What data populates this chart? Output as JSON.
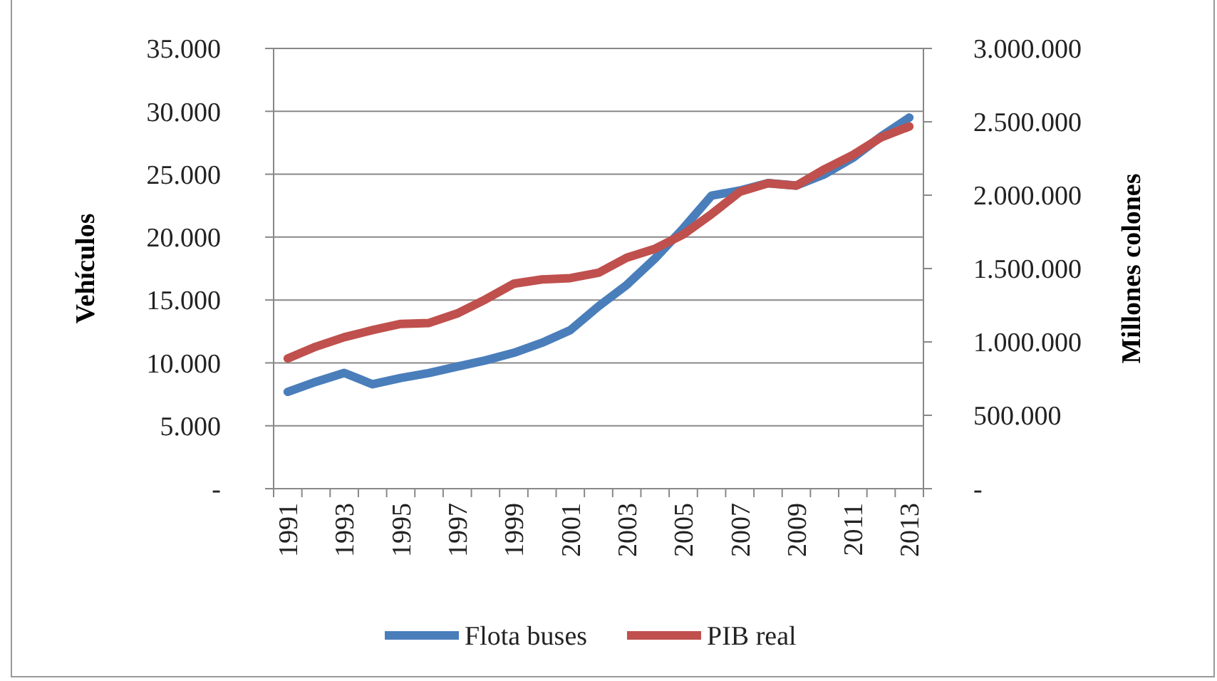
{
  "chart_data": {
    "type": "line",
    "ylabel": "Vehículos",
    "y2label": "Millones colones",
    "categories": [
      "1991",
      null,
      "1993",
      null,
      "1995",
      null,
      "1997",
      null,
      "1999",
      null,
      "2001",
      null,
      "2003",
      null,
      "2005",
      null,
      "2007",
      null,
      "2009",
      null,
      "2011",
      null,
      "2013"
    ],
    "series": [
      {
        "name": "Flota buses",
        "color": "#4a7ebb",
        "values": [
          7700,
          8500,
          9200,
          8300,
          8800,
          9200,
          9700,
          10200,
          10800,
          11600,
          12600,
          14500,
          16200,
          18300,
          20700,
          23300,
          23700,
          24300,
          24100,
          25000,
          26300,
          28000,
          29500
        ]
      },
      {
        "name": "PIB real",
        "color": "#c0504d",
        "axis": "y2",
        "values": [
          887000,
          968000,
          1032000,
          1081000,
          1123000,
          1129000,
          1194000,
          1290000,
          1397000,
          1426000,
          1435000,
          1471000,
          1574000,
          1635000,
          1732000,
          1871000,
          2023000,
          2081000,
          2065000,
          2177000,
          2274000,
          2394000,
          2468000
        ]
      }
    ],
    "ylim": [
      0,
      35000
    ],
    "yticks": [
      {
        "value": 0,
        "label": "-"
      },
      {
        "value": 5000,
        "label": "5.000"
      },
      {
        "value": 10000,
        "label": "10.000"
      },
      {
        "value": 15000,
        "label": "15.000"
      },
      {
        "value": 20000,
        "label": "20.000"
      },
      {
        "value": 25000,
        "label": "25.000"
      },
      {
        "value": 30000,
        "label": "30.000"
      },
      {
        "value": 35000,
        "label": "35.000"
      }
    ],
    "y2lim": [
      0,
      3000000
    ],
    "y2ticks": [
      {
        "value": 0,
        "label": "-"
      },
      {
        "value": 500000,
        "label": "500.000"
      },
      {
        "value": 1000000,
        "label": "1.000.000"
      },
      {
        "value": 1500000,
        "label": "1.500.000"
      },
      {
        "value": 2000000,
        "label": "2.000.000"
      },
      {
        "value": 2500000,
        "label": "2.500.000"
      },
      {
        "value": 3000000,
        "label": "3.000.000"
      }
    ],
    "grid": "y",
    "legend": "bottom",
    "marker": "none",
    "line_style": "solid"
  }
}
